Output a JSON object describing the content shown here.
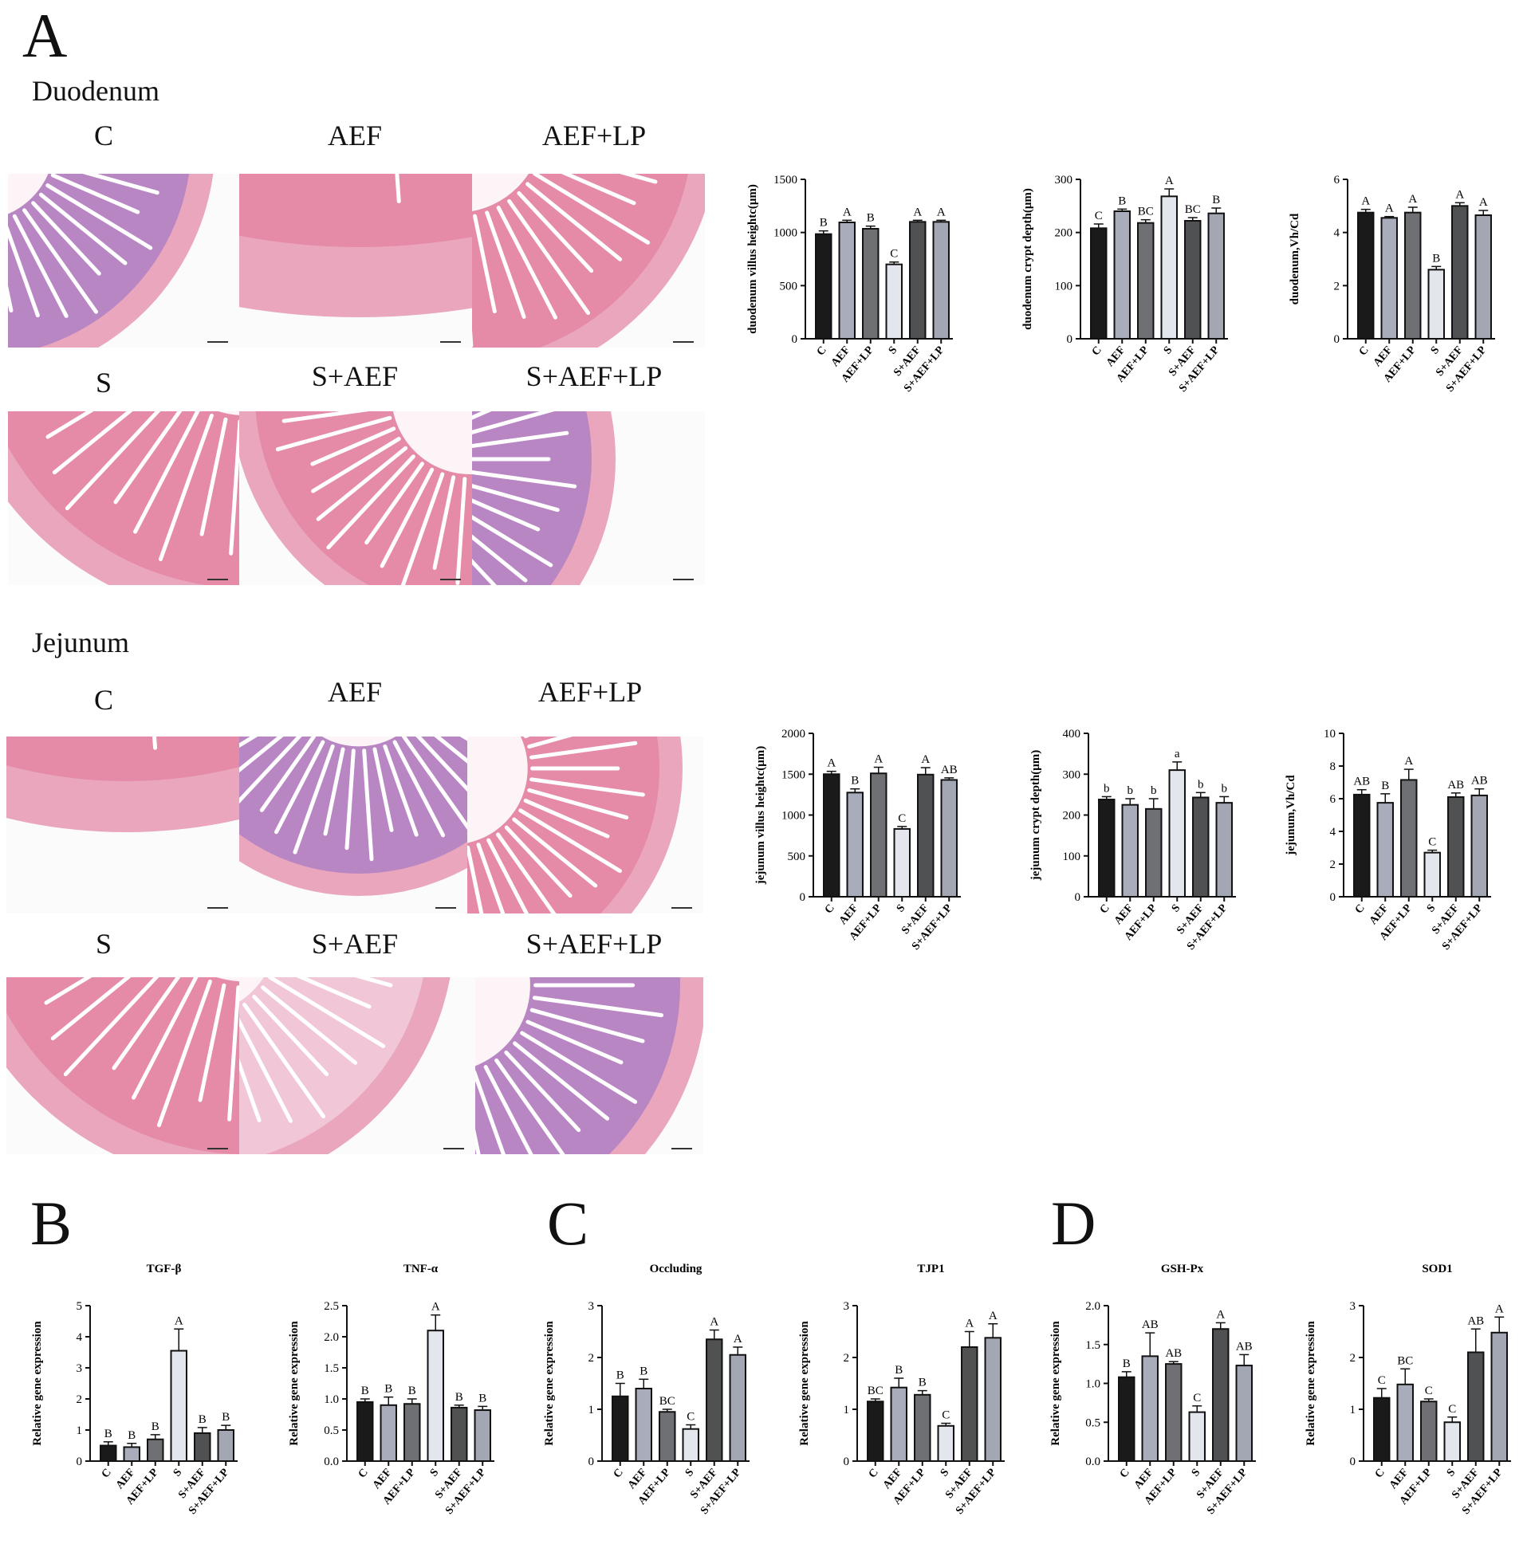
{
  "panels": {
    "a": "A",
    "b": "B",
    "c": "C",
    "d": "D"
  },
  "sections": {
    "duodenum": "Duodenum",
    "jejunum": "Jejunum"
  },
  "image_labels": {
    "duo": [
      "C",
      "AEF",
      "AEF+LP",
      "S",
      "S+AEF",
      "S+AEF+LP"
    ],
    "jej": [
      "C",
      "AEF",
      "AEF+LP",
      "S",
      "S+AEF",
      "S+AEF+LP"
    ]
  },
  "colors": {
    "bars": [
      "#1a1a1a",
      "#a9adbb",
      "#6f7074",
      "#e4e6ee",
      "#4f5153",
      "#a3a6b3"
    ],
    "tissue_pink": "#e58aa7",
    "tissue_purple": "#b986c4"
  },
  "chart_data": [
    {
      "id": "duo_vh",
      "type": "bar",
      "title": "",
      "xlabel": "",
      "ylabel": "duodenum villus heightc(μm)",
      "categories": [
        "C",
        "AEF",
        "AEF+LP",
        "S",
        "S+AEF",
        "S+AEF+LP"
      ],
      "values": [
        985,
        1095,
        1035,
        700,
        1100,
        1100
      ],
      "errors": [
        30,
        20,
        25,
        22,
        15,
        15
      ],
      "letters": [
        "B",
        "A",
        "B",
        "C",
        "A",
        "A"
      ],
      "ylim": [
        0,
        1500
      ],
      "yticks": [
        0,
        500,
        1000,
        1500
      ],
      "yticklabels": [
        "0",
        "500",
        "1000",
        "1500"
      ]
    },
    {
      "id": "duo_cd",
      "type": "bar",
      "title": "",
      "xlabel": "",
      "ylabel": "duodenum crypt depth(μm)",
      "categories": [
        "C",
        "AEF",
        "AEF+LP",
        "S",
        "S+AEF",
        "S+AEF+LP"
      ],
      "values": [
        208,
        240,
        218,
        268,
        222,
        236
      ],
      "errors": [
        8,
        4,
        6,
        14,
        6,
        10
      ],
      "letters": [
        "C",
        "B",
        "BC",
        "A",
        "BC",
        "B"
      ],
      "ylim": [
        0,
        300
      ],
      "yticks": [
        0,
        100,
        200,
        300
      ],
      "yticklabels": [
        "0",
        "100",
        "200",
        "300"
      ]
    },
    {
      "id": "duo_ratio",
      "type": "bar",
      "title": "",
      "xlabel": "",
      "ylabel": "duodenum,Vh/Cd",
      "categories": [
        "C",
        "AEF",
        "AEF+LP",
        "S",
        "S+AEF",
        "S+AEF+LP"
      ],
      "values": [
        4.75,
        4.55,
        4.75,
        2.6,
        5.0,
        4.65
      ],
      "errors": [
        0.12,
        0.05,
        0.2,
        0.12,
        0.12,
        0.18
      ],
      "letters": [
        "A",
        "A",
        "A",
        "B",
        "A",
        "A"
      ],
      "ylim": [
        0,
        6
      ],
      "yticks": [
        0,
        2,
        4,
        6
      ],
      "yticklabels": [
        "0",
        "2",
        "4",
        "6"
      ]
    },
    {
      "id": "jej_vh",
      "type": "bar",
      "title": "",
      "xlabel": "",
      "ylabel": "jejunum villus heightc(μm)",
      "categories": [
        "C",
        "AEF",
        "AEF+LP",
        "S",
        "S+AEF",
        "S+AEF+LP"
      ],
      "values": [
        1500,
        1275,
        1510,
        830,
        1495,
        1430
      ],
      "errors": [
        35,
        45,
        75,
        30,
        85,
        25
      ],
      "letters": [
        "A",
        "B",
        "A",
        "C",
        "A",
        "AB"
      ],
      "ylim": [
        0,
        2000
      ],
      "yticks": [
        0,
        500,
        1000,
        1500,
        2000
      ],
      "yticklabels": [
        "0",
        "500",
        "1000",
        "1500",
        "2000"
      ]
    },
    {
      "id": "jej_cd",
      "type": "bar",
      "title": "",
      "xlabel": "",
      "ylabel": "jejunum crypt depth(μm)",
      "categories": [
        "C",
        "AEF",
        "AEF+LP",
        "S",
        "S+AEF",
        "S+AEF+LP"
      ],
      "values": [
        238,
        225,
        215,
        310,
        243,
        230
      ],
      "errors": [
        7,
        15,
        25,
        20,
        12,
        15
      ],
      "letters": [
        "b",
        "b",
        "b",
        "a",
        "b",
        "b"
      ],
      "ylim": [
        0,
        400
      ],
      "yticks": [
        0,
        100,
        200,
        300,
        400
      ],
      "yticklabels": [
        "0",
        "100",
        "200",
        "300",
        "400"
      ]
    },
    {
      "id": "jej_ratio",
      "type": "bar",
      "title": "",
      "xlabel": "",
      "ylabel": "jejunum,Vh/Cd",
      "categories": [
        "C",
        "AEF",
        "AEF+LP",
        "S",
        "S+AEF",
        "S+AEF+LP"
      ],
      "values": [
        6.25,
        5.75,
        7.15,
        2.7,
        6.1,
        6.2
      ],
      "errors": [
        0.3,
        0.55,
        0.65,
        0.15,
        0.25,
        0.4
      ],
      "letters": [
        "AB",
        "B",
        "A",
        "C",
        "AB",
        "AB"
      ],
      "ylim": [
        0,
        10
      ],
      "yticks": [
        0,
        2,
        4,
        6,
        8,
        10
      ],
      "yticklabels": [
        "0",
        "2",
        "4",
        "6",
        "8",
        "10"
      ]
    },
    {
      "id": "tgf",
      "type": "bar",
      "title": "TGF-β",
      "xlabel": "",
      "ylabel": "Relative gene expression",
      "categories": [
        "C",
        "AEF",
        "AEF+LP",
        "S",
        "S+AEF",
        "S+AEF+LP"
      ],
      "values": [
        0.5,
        0.45,
        0.7,
        3.55,
        0.9,
        1.0
      ],
      "errors": [
        0.12,
        0.12,
        0.15,
        0.7,
        0.18,
        0.15
      ],
      "letters": [
        "B",
        "B",
        "B",
        "A",
        "B",
        "B"
      ],
      "ylim": [
        0,
        5
      ],
      "yticks": [
        0,
        1,
        2,
        3,
        4,
        5
      ],
      "yticklabels": [
        "0",
        "1",
        "2",
        "3",
        "4",
        "5"
      ]
    },
    {
      "id": "tnf",
      "type": "bar",
      "title": "TNF-α",
      "xlabel": "",
      "ylabel": "Relative gene expression",
      "categories": [
        "C",
        "AEF",
        "AEF+LP",
        "S",
        "S+AEF",
        "S+AEF+LP"
      ],
      "values": [
        0.95,
        0.9,
        0.92,
        2.1,
        0.86,
        0.82
      ],
      "errors": [
        0.05,
        0.13,
        0.08,
        0.25,
        0.04,
        0.06
      ],
      "letters": [
        "B",
        "B",
        "B",
        "A",
        "B",
        "B"
      ],
      "ylim": [
        0,
        2.5
      ],
      "yticks": [
        0,
        0.5,
        1.0,
        1.5,
        2.0,
        2.5
      ],
      "yticklabels": [
        "0.0",
        "0.5",
        "1.0",
        "1.5",
        "2.0",
        "2.5"
      ]
    },
    {
      "id": "occ",
      "type": "bar",
      "title": "Occluding",
      "xlabel": "",
      "ylabel": "Relative gene expression",
      "categories": [
        "C",
        "AEF",
        "AEF+LP",
        "S",
        "S+AEF",
        "S+AEF+LP"
      ],
      "values": [
        1.25,
        1.4,
        0.95,
        0.62,
        2.35,
        2.05
      ],
      "errors": [
        0.25,
        0.18,
        0.05,
        0.08,
        0.18,
        0.15
      ],
      "letters": [
        "B",
        "B",
        "BC",
        "C",
        "A",
        "A"
      ],
      "ylim": [
        0,
        3
      ],
      "yticks": [
        0,
        1,
        2,
        3
      ],
      "yticklabels": [
        "0",
        "1",
        "2",
        "3"
      ]
    },
    {
      "id": "tjp1",
      "type": "bar",
      "title": "TJP1",
      "xlabel": "",
      "ylabel": "Relative gene expression",
      "categories": [
        "C",
        "AEF",
        "AEF+LP",
        "S",
        "S+AEF",
        "S+AEF+LP"
      ],
      "values": [
        1.15,
        1.42,
        1.28,
        0.68,
        2.2,
        2.38
      ],
      "errors": [
        0.05,
        0.18,
        0.08,
        0.05,
        0.3,
        0.27
      ],
      "letters": [
        "BC",
        "B",
        "B",
        "C",
        "A",
        "A"
      ],
      "ylim": [
        0,
        3
      ],
      "yticks": [
        0,
        1,
        2,
        3
      ],
      "yticklabels": [
        "0",
        "1",
        "2",
        "3"
      ]
    },
    {
      "id": "gsh",
      "type": "bar",
      "title": "GSH-Px",
      "xlabel": "",
      "ylabel": "Relative gene expression",
      "categories": [
        "C",
        "AEF",
        "AEF+LP",
        "S",
        "S+AEF",
        "S+AEF+LP"
      ],
      "values": [
        1.08,
        1.35,
        1.25,
        0.63,
        1.7,
        1.23
      ],
      "errors": [
        0.07,
        0.3,
        0.03,
        0.08,
        0.08,
        0.14
      ],
      "letters": [
        "B",
        "AB",
        "AB",
        "C",
        "A",
        "AB"
      ],
      "ylim": [
        0,
        2.0
      ],
      "yticks": [
        0,
        0.5,
        1.0,
        1.5,
        2.0
      ],
      "yticklabels": [
        "0.0",
        "0.5",
        "1.0",
        "1.5",
        "2.0"
      ]
    },
    {
      "id": "sod1",
      "type": "bar",
      "title": "SOD1",
      "xlabel": "",
      "ylabel": "Relative gene expression",
      "categories": [
        "C",
        "AEF",
        "AEF+LP",
        "S",
        "S+AEF",
        "S+AEF+LP"
      ],
      "values": [
        1.22,
        1.48,
        1.15,
        0.75,
        2.1,
        2.48
      ],
      "errors": [
        0.18,
        0.3,
        0.05,
        0.1,
        0.45,
        0.3
      ],
      "letters": [
        "C",
        "BC",
        "C",
        "C",
        "AB",
        "A"
      ],
      "ylim": [
        0,
        3
      ],
      "yticks": [
        0,
        1,
        2,
        3
      ],
      "yticklabels": [
        "0",
        "1",
        "2",
        "3"
      ]
    }
  ]
}
